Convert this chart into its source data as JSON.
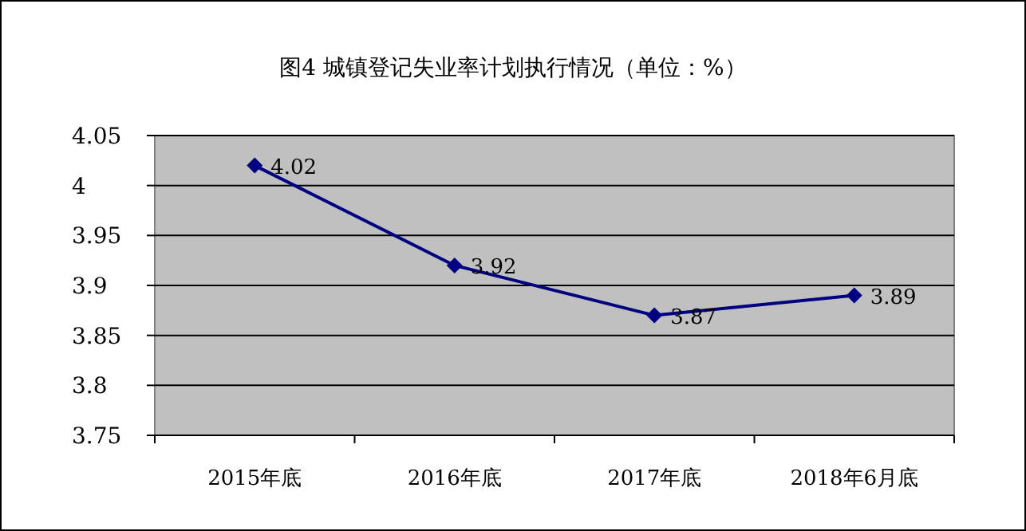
{
  "chart_data": {
    "type": "line",
    "title": "图4 城镇登记失业率计划执行情况（单位：%）",
    "categories": [
      "2015年底",
      "2016年底",
      "2017年底",
      "2018年6月底"
    ],
    "series": [
      {
        "color": "#000080",
        "values": [
          4.02,
          3.92,
          3.87,
          3.89
        ]
      }
    ],
    "ylim": [
      3.75,
      4.05
    ],
    "yticks": [
      3.75,
      3.8,
      3.85,
      3.9,
      3.95,
      4,
      4.05
    ],
    "grid": "y",
    "marker": "diamond",
    "line_style": "solid",
    "data_labels": true
  }
}
